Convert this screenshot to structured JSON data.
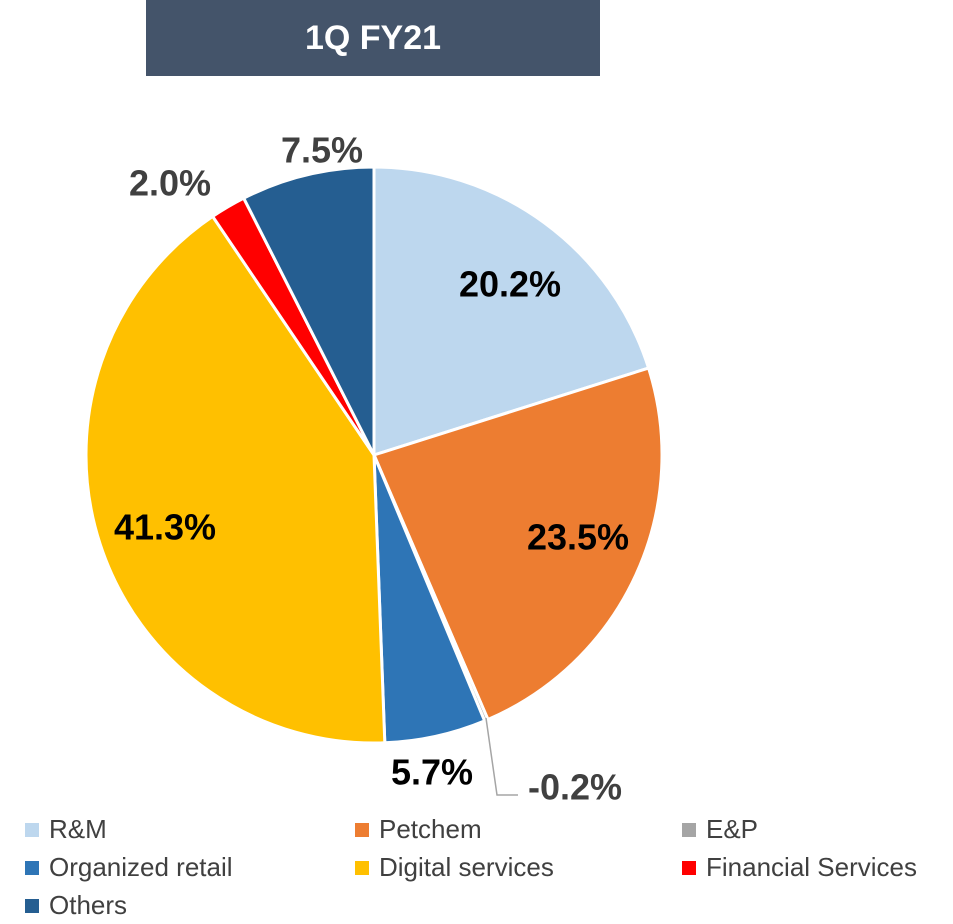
{
  "chart_data": {
    "type": "pie",
    "title": "1Q FY21",
    "categories": [
      "R&M",
      "Petchem",
      "E&P",
      "Organized retail",
      "Digital services",
      "Financial Services",
      "Others"
    ],
    "values": [
      20.2,
      23.5,
      -0.2,
      5.7,
      41.3,
      2.0,
      7.5
    ],
    "value_labels": [
      "20.2%",
      "23.5%",
      "-0.2%",
      "5.7%",
      "41.3%",
      "2.0%",
      "7.5%"
    ],
    "colors": [
      "#bdd7ee",
      "#ed7d31",
      "#a5a5a5",
      "#2e75b6",
      "#ffc000",
      "#ff0000",
      "#255e91"
    ],
    "legend": "bottom"
  }
}
